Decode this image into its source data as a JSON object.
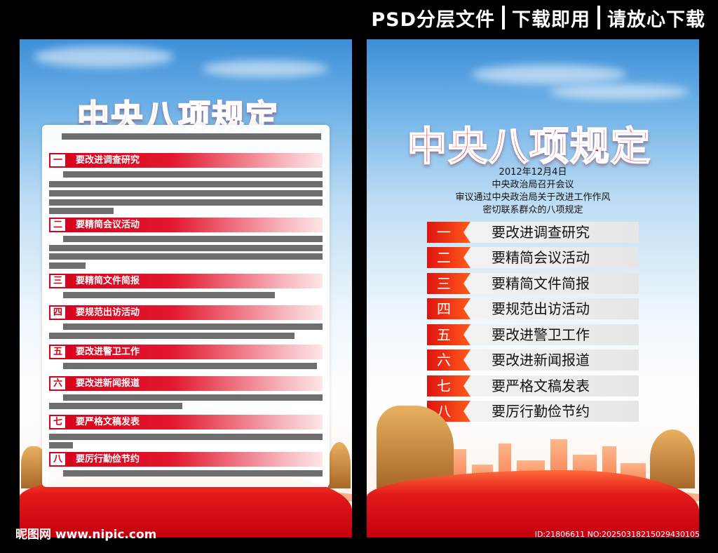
{
  "header": {
    "parts": [
      "PSD分层文件",
      "下载即用",
      "请放心下载"
    ]
  },
  "left_poster": {
    "title": "中央八项规定",
    "items": [
      {
        "num": "一",
        "text": "要改进调查研究"
      },
      {
        "num": "二",
        "text": "要精简会议活动"
      },
      {
        "num": "三",
        "text": "要精简文件简报"
      },
      {
        "num": "四",
        "text": "要规范出访活动"
      },
      {
        "num": "五",
        "text": "要改进警卫工作"
      },
      {
        "num": "六",
        "text": "要改进新闻报道"
      },
      {
        "num": "七",
        "text": "要严格文稿发表"
      },
      {
        "num": "八",
        "text": "要厉行勤俭节约"
      }
    ]
  },
  "right_poster": {
    "title": "中央八项规定",
    "info": [
      "2012年12月4日",
      "中央政治局召开会议",
      "审议通过中央政治局关于改进工作作风",
      "密切联系群众的八项规定"
    ],
    "items": [
      {
        "num": "一",
        "text": "要改进调查研究"
      },
      {
        "num": "二",
        "text": "要精简会议活动"
      },
      {
        "num": "三",
        "text": "要精简文件简报"
      },
      {
        "num": "四",
        "text": "要规范出访活动"
      },
      {
        "num": "五",
        "text": "要改进警卫工作"
      },
      {
        "num": "六",
        "text": "要改进新闻报道"
      },
      {
        "num": "七",
        "text": "要严格文稿发表"
      },
      {
        "num": "八",
        "text": "要厉行勤俭节约"
      }
    ]
  },
  "footer": {
    "watermark": "昵图网 www.nipic.com",
    "id_text": "ID:21806611 NO:20250318215029430105"
  }
}
